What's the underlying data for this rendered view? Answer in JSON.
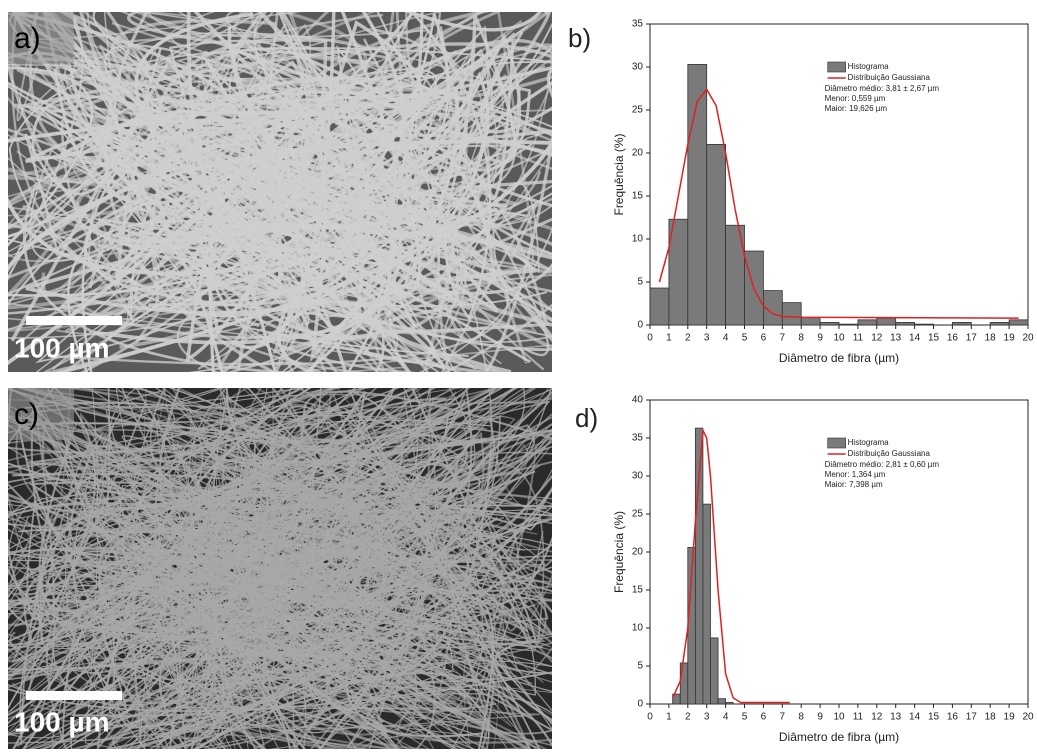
{
  "panels": [
    {
      "label": "a)",
      "scale_bar": "100 µm"
    },
    {
      "label": "c)",
      "scale_bar": "100 µm"
    }
  ],
  "chart_data": [
    {
      "type": "histogram",
      "panel_label": "b)",
      "xlabel": "Diâmetro de fibra (µm)",
      "ylabel": "Frequência (%)",
      "bins": [
        0,
        1,
        2,
        3,
        4,
        5,
        6,
        7,
        8,
        9,
        10,
        11,
        12,
        13,
        14,
        15,
        16,
        17,
        18,
        19,
        20
      ],
      "xlim": [
        0,
        20
      ],
      "xticks": [
        0,
        1,
        2,
        3,
        4,
        5,
        6,
        7,
        8,
        9,
        10,
        11,
        12,
        13,
        14,
        15,
        16,
        17,
        18,
        19,
        20
      ],
      "ylim": [
        0,
        35
      ],
      "yticks": [
        0,
        5,
        10,
        15,
        20,
        25,
        30,
        35
      ],
      "series": [
        {
          "name": "Histograma",
          "color": "#7a7a7a",
          "values": [
            4.3,
            12.3,
            30.3,
            21,
            11.6,
            8.6,
            4,
            2.6,
            0.9,
            0.3,
            0.1,
            0.6,
            0.8,
            0.3,
            0.1,
            0,
            0.3,
            0,
            0.3,
            0.6
          ]
        },
        {
          "name": "Distribuição Gaussiana",
          "color": "#e02020",
          "x": [
            0.5,
            1,
            1.5,
            2,
            2.5,
            3,
            3.5,
            4,
            4.5,
            5,
            5.5,
            6,
            6.5,
            7,
            8,
            19.5
          ],
          "values": [
            5,
            9,
            15,
            21,
            26,
            27.4,
            25.5,
            20,
            13.5,
            8,
            4.2,
            2.2,
            1.3,
            1,
            0.9,
            0.8
          ]
        }
      ],
      "annotations": [
        "Diâmetro médio: 3,81 ± 2,67 µm",
        "Menor: 0,559 µm",
        "Maior: 19,626 µm"
      ]
    },
    {
      "type": "histogram",
      "panel_label": "d)",
      "xlabel": "Diâmetro de fibra (µm)",
      "ylabel": "Frequência (%)",
      "bins": [
        1.2,
        1.6,
        2.0,
        2.4,
        2.8,
        3.2,
        3.6,
        4.0,
        4.4
      ],
      "xlim": [
        0,
        20
      ],
      "xticks": [
        0,
        1,
        2,
        3,
        4,
        5,
        6,
        7,
        8,
        9,
        10,
        11,
        12,
        13,
        14,
        15,
        16,
        17,
        18,
        19,
        20
      ],
      "ylim": [
        0,
        40
      ],
      "yticks": [
        0,
        5,
        10,
        15,
        20,
        25,
        30,
        35,
        40
      ],
      "series": [
        {
          "name": "Histograma",
          "color": "#7a7a7a",
          "values": [
            1.3,
            5.4,
            20.6,
            36.3,
            26.3,
            8.7,
            0.7,
            0.2
          ]
        },
        {
          "name": "Distribuição Gaussiana",
          "color": "#e02020",
          "x": [
            1.2,
            1.6,
            2.0,
            2.4,
            2.8,
            3.0,
            3.2,
            3.6,
            4.0,
            4.4,
            4.8,
            7.4
          ],
          "values": [
            0.8,
            3,
            10,
            24,
            36,
            35,
            30,
            15,
            4,
            0.8,
            0.2,
            0.2
          ]
        }
      ],
      "annotations": [
        "Diâmetro médio: 2,81 ± 0,60 µm",
        "Menor: 1,364 µm",
        "Maior: 7,398 µm"
      ]
    }
  ]
}
